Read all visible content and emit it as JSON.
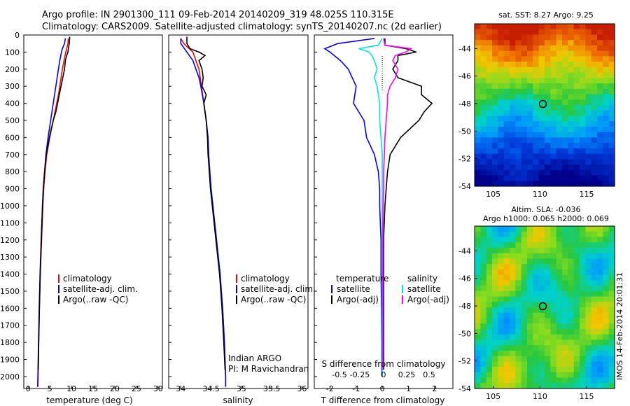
{
  "header": {
    "title_line1": "Argo profile: IN 2901300_111 09-Feb-2014 20140209_319 48.025S 110.315E",
    "title_line2": "Climatology: CARS2009. Satellite-adjusted climatology: synTS_20140207.nc (2d earlier)"
  },
  "colors": {
    "clim": "#ff0000",
    "sat": "#0000ff",
    "argo": "#000000",
    "sat_s": "#00e6e6",
    "argo_s": "#ff00ff"
  },
  "depth_ticks": [
    "0",
    "100",
    "200",
    "300",
    "400",
    "500",
    "600",
    "700",
    "800",
    "900",
    "1000",
    "1100",
    "1200",
    "1300",
    "1400",
    "1500",
    "1600",
    "1700",
    "1800",
    "1900",
    "2000"
  ],
  "legend": {
    "clim": "climatology",
    "sat": "satellite-adj. clim.",
    "argo": "Argo(..raw -QC)"
  },
  "credit": {
    "line1": "Indian ARGO",
    "line2": "PI: M Ravichandran"
  },
  "diff_legend": {
    "temp_title": "temperature",
    "temp_sat": "satellite",
    "temp_argo": "Argo(-adj)",
    "sal_title": "salinity",
    "sal_sat": "satellite",
    "sal_argo": "Argo(-adj)",
    "s_label": "S difference from climatology"
  },
  "maps": {
    "sst_title": "sat. SST: 8.27  Argo: 9.25",
    "sla_title1": "Altim. SLA: -0.036",
    "sla_title2": "Argo h1000: 0.065 h2000: 0.069",
    "lat_ticks": [
      "-44",
      "-46",
      "-48",
      "-50",
      "-52",
      "-54"
    ],
    "lon_ticks": [
      "105",
      "110",
      "115"
    ],
    "float_lon": 110.315,
    "float_lat": -48.025
  },
  "timestamp": "IMOS 14-Feb-2014 20:01:31",
  "chart_data": [
    {
      "type": "line",
      "xlabel": "temperature (deg C)",
      "ylabel": "",
      "xlim": [
        -1,
        31
      ],
      "ylim": [
        2070,
        0
      ],
      "x_ticks": [
        "0",
        "5",
        "10",
        "15",
        "20",
        "25",
        "30"
      ],
      "series": [
        {
          "name": "climatology",
          "color": "#ff0000",
          "depth": [
            20,
            50,
            100,
            150,
            200,
            250,
            300,
            350,
            400,
            450,
            500,
            600,
            700,
            800,
            900,
            1000,
            1200,
            1400,
            1600,
            1800,
            2000,
            2060
          ],
          "values": [
            9.3,
            9.2,
            8.7,
            8.3,
            7.9,
            7.6,
            7.3,
            7.0,
            6.6,
            6.2,
            5.8,
            5.0,
            4.3,
            3.9,
            3.6,
            3.4,
            3.1,
            2.8,
            2.6,
            2.45,
            2.3,
            2.25
          ]
        },
        {
          "name": "satellite-adj. clim.",
          "color": "#0000ff",
          "depth": [
            20,
            50,
            80,
            100,
            150,
            200,
            250,
            300,
            350,
            400,
            450,
            500,
            600,
            700,
            800,
            900,
            1000,
            1200,
            1400,
            1600,
            1800,
            2000,
            2060
          ],
          "values": [
            8.6,
            8.4,
            7.9,
            7.7,
            7.3,
            7.0,
            6.7,
            6.4,
            6.1,
            5.8,
            5.5,
            5.2,
            4.6,
            4.1,
            3.8,
            3.5,
            3.3,
            3.0,
            2.75,
            2.55,
            2.4,
            2.25,
            2.2
          ]
        },
        {
          "name": "Argo(..raw -QC)",
          "color": "#000000",
          "depth": [
            10,
            50,
            80,
            100,
            120,
            150,
            200,
            250,
            300,
            350,
            400,
            450,
            500,
            600,
            700,
            800,
            900,
            1000,
            1200,
            1400,
            1600,
            1800,
            1960
          ],
          "values": [
            9.6,
            9.5,
            9.3,
            9.2,
            8.9,
            8.6,
            8.4,
            8.0,
            7.6,
            7.2,
            6.8,
            6.4,
            5.8,
            4.9,
            4.2,
            3.8,
            3.5,
            3.35,
            3.05,
            2.8,
            2.6,
            2.45,
            2.35
          ]
        }
      ]
    },
    {
      "type": "line",
      "xlabel": "salinity",
      "ylabel": "",
      "xlim": [
        33.8,
        36.1
      ],
      "ylim": [
        2070,
        0
      ],
      "x_ticks": [
        "34",
        "34.5",
        "35",
        "35.5",
        "36"
      ],
      "series": [
        {
          "name": "climatology",
          "color": "#ff0000",
          "depth": [
            20,
            50,
            100,
            150,
            200,
            250,
            300,
            400,
            500,
            600,
            700,
            800,
            900,
            1000,
            1200,
            1400,
            1600,
            1800,
            2000,
            2060
          ],
          "values": [
            34.0,
            34.05,
            34.2,
            34.25,
            34.3,
            34.32,
            34.34,
            34.38,
            34.42,
            34.45,
            34.46,
            34.47,
            34.49,
            34.52,
            34.58,
            34.64,
            34.69,
            34.72,
            34.74,
            34.74
          ]
        },
        {
          "name": "satellite-adj. clim.",
          "color": "#0000ff",
          "depth": [
            20,
            50,
            100,
            150,
            200,
            250,
            300,
            400,
            500,
            600,
            700,
            800,
            900,
            1000,
            1200,
            1400,
            1600,
            1800,
            2000,
            2060
          ],
          "values": [
            34.0,
            34.0,
            34.1,
            34.2,
            34.25,
            34.3,
            34.33,
            34.38,
            34.42,
            34.45,
            34.46,
            34.48,
            34.5,
            34.53,
            34.59,
            34.65,
            34.69,
            34.72,
            34.74,
            34.74
          ]
        },
        {
          "name": "Argo(..raw -QC)",
          "color": "#000000",
          "depth": [
            10,
            50,
            80,
            100,
            120,
            150,
            200,
            250,
            300,
            350,
            400,
            500,
            600,
            700,
            800,
            900,
            1000,
            1200,
            1400,
            1600,
            1800,
            1960
          ],
          "values": [
            34.1,
            34.1,
            34.15,
            34.3,
            34.4,
            34.3,
            34.35,
            34.37,
            34.35,
            34.42,
            34.38,
            34.42,
            34.44,
            34.45,
            34.47,
            34.49,
            34.52,
            34.58,
            34.64,
            34.68,
            34.71,
            34.73
          ]
        }
      ]
    },
    {
      "type": "line",
      "xlabel": "T difference from climatology",
      "ylabel": "",
      "xlim": [
        -2.6,
        2.7
      ],
      "ylim": [
        2070,
        0
      ],
      "x_ticks": [
        "-2",
        "-1",
        "0",
        "1",
        "2"
      ],
      "secondary_x_ticks": [
        "-0.5",
        "-0.25",
        "0",
        "0.25",
        "0.5"
      ],
      "series": [
        {
          "name": "temperature satellite",
          "color": "#0000ff",
          "depth": [
            20,
            50,
            80,
            100,
            150,
            200,
            300,
            400,
            500,
            600,
            700,
            800,
            900,
            1000,
            1200,
            1400,
            1600,
            1800,
            2000
          ],
          "values": [
            -0.3,
            -1.7,
            -2.2,
            -2.0,
            -1.6,
            -1.3,
            -1.0,
            -1.1,
            -0.7,
            -0.6,
            -0.3,
            -0.15,
            -0.1,
            -0.1,
            -0.05,
            -0.05,
            -0.03,
            -0.02,
            -0.02
          ]
        },
        {
          "name": "temperature Argo(-adj)",
          "color": "#000000",
          "depth": [
            20,
            60,
            80,
            100,
            120,
            150,
            200,
            250,
            300,
            350,
            400,
            450,
            500,
            600,
            700,
            800,
            900,
            1000,
            1200,
            1400,
            1600,
            1800,
            1960
          ],
          "values": [
            0.1,
            0.1,
            0.9,
            1.3,
            0.6,
            0.6,
            0.4,
            0.6,
            1.5,
            1.5,
            1.9,
            1.6,
            1.4,
            0.7,
            0.3,
            0.2,
            0.15,
            0.1,
            0.05,
            0.05,
            0.05,
            0.05,
            0.05
          ]
        },
        {
          "name": "salinity satellite",
          "color": "#00e6e6",
          "depth": [
            20,
            60,
            80,
            100,
            120,
            150,
            200,
            250,
            300,
            400,
            500,
            600,
            700,
            800,
            900,
            1000,
            1200,
            1400,
            1600,
            1800,
            2000
          ],
          "values": [
            0,
            -0.15,
            -0.9,
            -0.5,
            -0.4,
            -0.3,
            -0.2,
            -0.3,
            -0.2,
            -0.1,
            -0.1,
            -0.05,
            0,
            0,
            0,
            0,
            0,
            0,
            0,
            0,
            0
          ]
        },
        {
          "name": "salinity Argo(-adj)",
          "color": "#ff00ff",
          "depth": [
            20,
            60,
            80,
            100,
            120,
            150,
            200,
            250,
            300,
            350,
            400,
            500,
            600,
            700,
            800,
            900,
            1000,
            1200,
            1400,
            1600,
            1800,
            1960
          ],
          "values": [
            0.05,
            0.1,
            1.1,
            0.9,
            0.5,
            0.4,
            0.6,
            0.5,
            0.3,
            0.2,
            0.2,
            0.15,
            0.1,
            0.08,
            0.05,
            0.05,
            0.03,
            0.02,
            0.02,
            0.02,
            0.02,
            0.02
          ]
        }
      ]
    },
    {
      "type": "heatmap",
      "title": "sat. SST: 8.27  Argo: 9.25",
      "xlim": [
        103,
        118
      ],
      "ylim": [
        -54,
        -42.2
      ],
      "x_ticks": [
        "105",
        "110",
        "115"
      ],
      "y_ticks": [
        "-44",
        "-46",
        "-48",
        "-50",
        "-52",
        "-54"
      ]
    },
    {
      "type": "heatmap",
      "title": "Altim. SLA: -0.036 / Argo h1000: 0.065 h2000: 0.069",
      "xlim": [
        103,
        118
      ],
      "ylim": [
        -54,
        -42.2
      ],
      "x_ticks": [
        "105",
        "110",
        "115"
      ],
      "y_ticks": [
        "-44",
        "-46",
        "-48",
        "-50",
        "-52",
        "-54"
      ]
    }
  ]
}
